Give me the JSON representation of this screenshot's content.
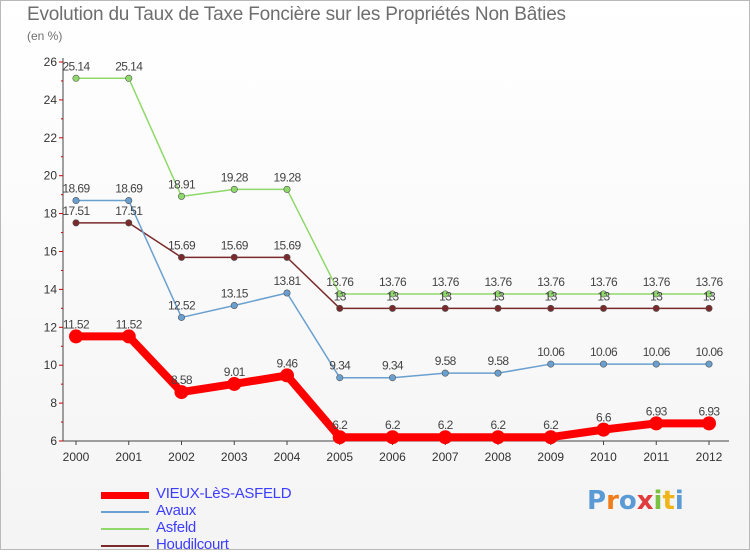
{
  "title": "Evolution du Taux de Taxe Foncière sur les Propriétés Non Bâties",
  "subtitle": "(en %)",
  "logo_text": "Proxiti",
  "chart_data": {
    "type": "line",
    "title": "Evolution du Taux de Taxe Foncière sur les Propriétés Non Bâties",
    "ylabel": "(en %)",
    "xlabel": "",
    "x": [
      "2000",
      "2001",
      "2002",
      "2003",
      "2004",
      "2005",
      "2006",
      "2007",
      "2008",
      "2009",
      "2010",
      "2011",
      "2012"
    ],
    "ylim": [
      6,
      26
    ],
    "yticks": [
      6,
      8,
      10,
      12,
      14,
      16,
      18,
      20,
      22,
      24,
      26
    ],
    "grid": false,
    "legend_position": "bottom-left",
    "series": [
      {
        "name": "VIEUX-LèS-ASFELD",
        "color": "#ff0000",
        "values": [
          11.52,
          11.52,
          8.58,
          9.01,
          9.46,
          6.2,
          6.2,
          6.2,
          6.2,
          6.2,
          6.6,
          6.93,
          6.93
        ],
        "labels": [
          "11.52",
          "11.52",
          "8.58",
          "9.01",
          "9.46",
          "6.2",
          "6.2",
          "6.2",
          "6.2",
          "6.2",
          "6.6",
          "6.93",
          "6.93"
        ]
      },
      {
        "name": "Avaux",
        "color": "#6aa0d0",
        "values": [
          18.69,
          18.69,
          12.52,
          13.15,
          13.81,
          9.34,
          9.34,
          9.58,
          9.58,
          10.06,
          10.06,
          10.06,
          10.06
        ],
        "labels": [
          "18.69",
          "18.69",
          "12.52",
          "13.15",
          "13.81",
          "9.34",
          "9.34",
          "9.58",
          "9.58",
          "10.06",
          "10.06",
          "10.06",
          "10.06"
        ]
      },
      {
        "name": "Asfeld",
        "color": "#8fd86a",
        "values": [
          25.14,
          25.14,
          18.91,
          19.28,
          19.28,
          13.76,
          13.76,
          13.76,
          13.76,
          13.76,
          13.76,
          13.76,
          13.76
        ],
        "labels": [
          "25.14",
          "25.14",
          "18.91",
          "19.28",
          "19.28",
          "13.76",
          "13.76",
          "13.76",
          "13.76",
          "13.76",
          "13.76",
          "13.76",
          "13.76"
        ]
      },
      {
        "name": "Houdilcourt",
        "color": "#7a2a2a",
        "values": [
          17.51,
          17.51,
          15.69,
          15.69,
          15.69,
          13,
          13,
          13,
          13,
          13,
          13,
          13,
          13
        ],
        "labels": [
          "17.51",
          "17.51",
          "15.69",
          "15.69",
          "15.69",
          "13",
          "13",
          "13",
          "13",
          "13",
          "13",
          "13",
          "13"
        ]
      }
    ]
  }
}
